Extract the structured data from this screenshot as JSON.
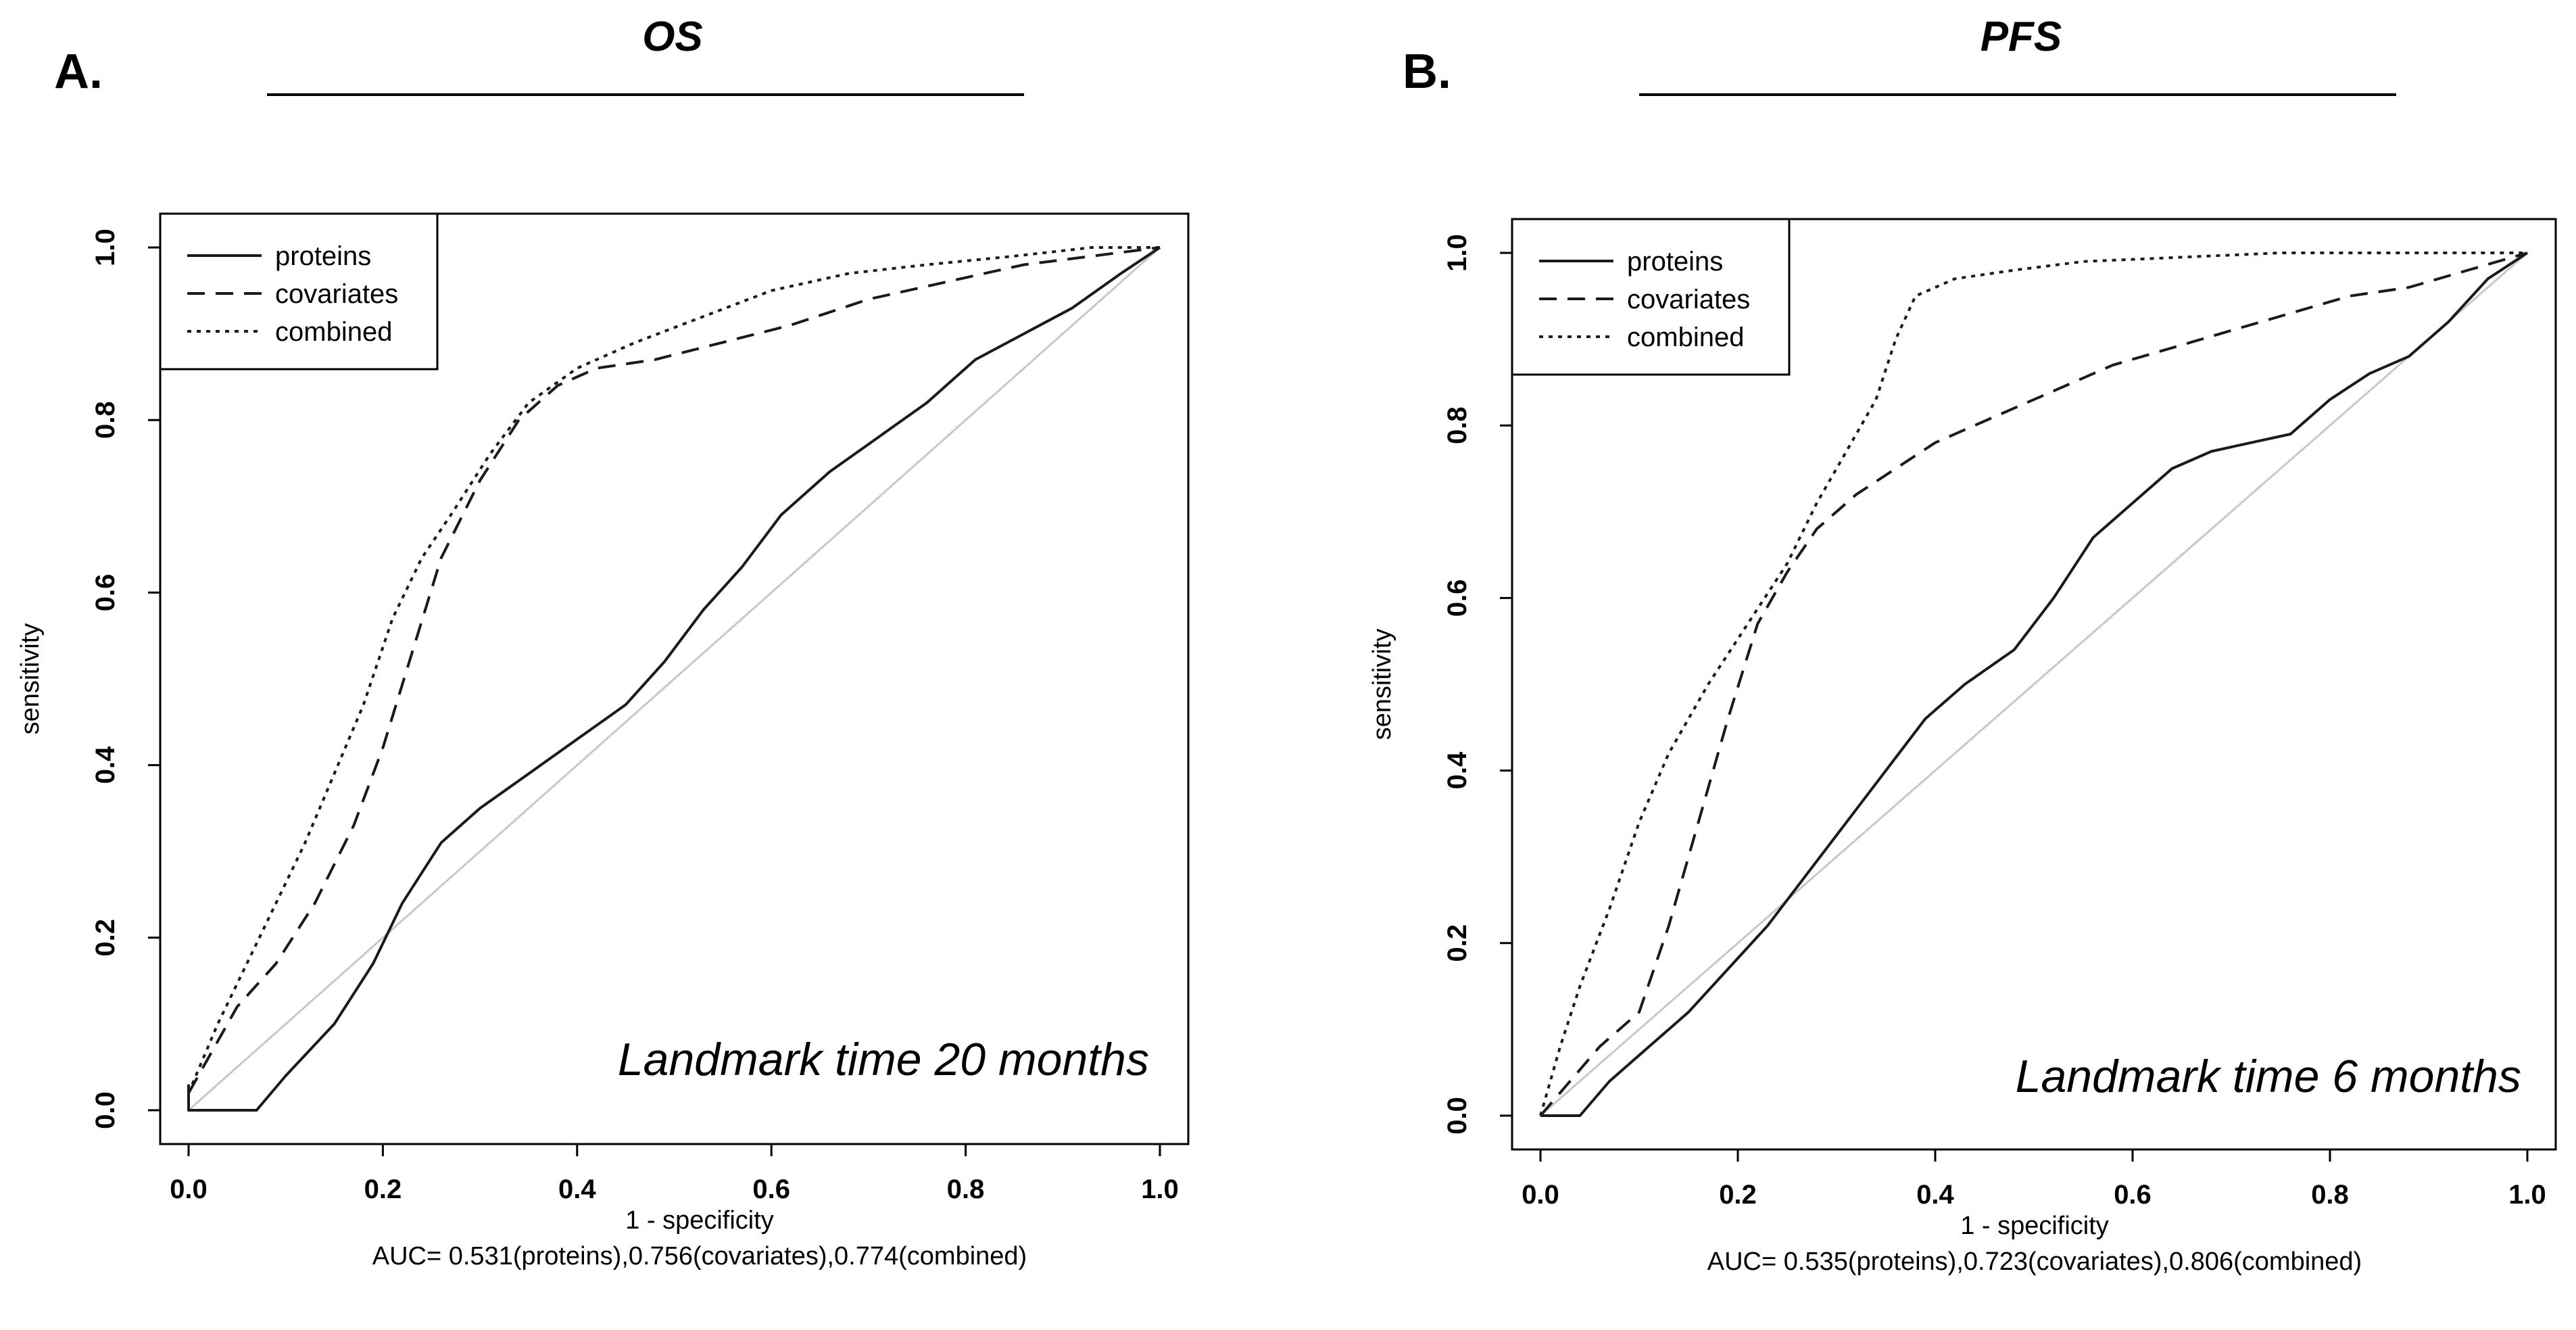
{
  "chart_data": [
    {
      "type": "line",
      "panel_letter": "A.",
      "title": "OS",
      "xlabel": "1 - specificity",
      "ylabel": "sensitivity",
      "xlim": [
        0,
        1
      ],
      "ylim": [
        0,
        1
      ],
      "xticks": [
        "0.0",
        "0.2",
        "0.4",
        "0.6",
        "0.8",
        "1.0"
      ],
      "yticks": [
        "0.0",
        "0.2",
        "0.4",
        "0.6",
        "0.8",
        "1.0"
      ],
      "grid": false,
      "legend_position": "top-left",
      "reference_line": "diagonal",
      "annotation": "Landmark time 20 months",
      "caption": "AUC= 0.531(proteins),0.756(covariates),0.774(combined)",
      "series": [
        {
          "name": "proteins",
          "style": "solid",
          "x": [
            0,
            0,
            0.07,
            0.1,
            0.15,
            0.19,
            0.22,
            0.26,
            0.3,
            0.35,
            0.4,
            0.45,
            0.49,
            0.53,
            0.57,
            0.61,
            0.66,
            0.71,
            0.76,
            0.81,
            0.86,
            0.91,
            0.96,
            1.0
          ],
          "y": [
            0.03,
            0,
            0,
            0.04,
            0.1,
            0.17,
            0.24,
            0.31,
            0.35,
            0.39,
            0.43,
            0.47,
            0.52,
            0.58,
            0.63,
            0.69,
            0.74,
            0.78,
            0.82,
            0.87,
            0.9,
            0.93,
            0.97,
            1.0
          ]
        },
        {
          "name": "covariates",
          "style": "dashed",
          "x": [
            0,
            0.05,
            0.09,
            0.13,
            0.17,
            0.2,
            0.23,
            0.26,
            0.3,
            0.34,
            0.38,
            0.42,
            0.48,
            0.55,
            0.62,
            0.7,
            0.78,
            0.86,
            0.93,
            1.0
          ],
          "y": [
            0.02,
            0.12,
            0.17,
            0.24,
            0.33,
            0.42,
            0.53,
            0.64,
            0.73,
            0.8,
            0.84,
            0.86,
            0.87,
            0.89,
            0.91,
            0.94,
            0.96,
            0.98,
            0.99,
            1.0
          ]
        },
        {
          "name": "combined",
          "style": "dotted",
          "x": [
            0,
            0.03,
            0.06,
            0.09,
            0.12,
            0.15,
            0.18,
            0.21,
            0.24,
            0.27,
            0.31,
            0.35,
            0.4,
            0.46,
            0.53,
            0.6,
            0.68,
            0.76,
            0.85,
            0.93,
            1.0
          ],
          "y": [
            0.02,
            0.1,
            0.17,
            0.24,
            0.31,
            0.39,
            0.47,
            0.57,
            0.64,
            0.69,
            0.76,
            0.82,
            0.86,
            0.89,
            0.92,
            0.95,
            0.97,
            0.98,
            0.99,
            1.0,
            1.0
          ]
        }
      ]
    },
    {
      "type": "line",
      "panel_letter": "B.",
      "title": "PFS",
      "xlabel": "1 - specificity",
      "ylabel": "sensitivity",
      "xlim": [
        0,
        1
      ],
      "ylim": [
        0,
        1
      ],
      "xticks": [
        "0.0",
        "0.2",
        "0.4",
        "0.6",
        "0.8",
        "1.0"
      ],
      "yticks": [
        "0.0",
        "0.2",
        "0.4",
        "0.6",
        "0.8",
        "1.0"
      ],
      "grid": false,
      "legend_position": "top-left",
      "reference_line": "diagonal",
      "annotation": "Landmark time 6 months",
      "caption": "AUC= 0.535(proteins),0.723(covariates),0.806(combined)",
      "series": [
        {
          "name": "proteins",
          "style": "solid",
          "x": [
            0,
            0.04,
            0.07,
            0.11,
            0.15,
            0.19,
            0.23,
            0.27,
            0.31,
            0.35,
            0.39,
            0.43,
            0.48,
            0.52,
            0.56,
            0.6,
            0.64,
            0.68,
            0.72,
            0.76,
            0.8,
            0.84,
            0.88,
            0.92,
            0.96,
            1.0
          ],
          "y": [
            0,
            0,
            0.04,
            0.08,
            0.12,
            0.17,
            0.22,
            0.28,
            0.34,
            0.4,
            0.46,
            0.5,
            0.54,
            0.6,
            0.67,
            0.71,
            0.75,
            0.77,
            0.78,
            0.79,
            0.83,
            0.86,
            0.88,
            0.92,
            0.97,
            1.0
          ]
        },
        {
          "name": "covariates",
          "style": "dashed",
          "x": [
            0,
            0.03,
            0.06,
            0.1,
            0.13,
            0.16,
            0.19,
            0.22,
            0.25,
            0.28,
            0.32,
            0.36,
            0.4,
            0.46,
            0.52,
            0.58,
            0.64,
            0.7,
            0.76,
            0.82,
            0.88,
            0.94,
            1.0
          ],
          "y": [
            0,
            0.04,
            0.08,
            0.12,
            0.22,
            0.34,
            0.46,
            0.57,
            0.63,
            0.68,
            0.72,
            0.75,
            0.78,
            0.81,
            0.84,
            0.87,
            0.89,
            0.91,
            0.93,
            0.95,
            0.96,
            0.98,
            1.0
          ]
        },
        {
          "name": "combined",
          "style": "dotted",
          "x": [
            0,
            0.02,
            0.04,
            0.07,
            0.1,
            0.13,
            0.17,
            0.21,
            0.25,
            0.28,
            0.31,
            0.34,
            0.36,
            0.38,
            0.42,
            0.48,
            0.55,
            0.65,
            0.75,
            0.85,
            0.95,
            1.0
          ],
          "y": [
            0,
            0.08,
            0.15,
            0.24,
            0.34,
            0.42,
            0.5,
            0.57,
            0.64,
            0.71,
            0.77,
            0.83,
            0.9,
            0.95,
            0.97,
            0.98,
            0.99,
            0.995,
            1.0,
            1.0,
            1.0,
            1.0
          ]
        }
      ]
    }
  ]
}
